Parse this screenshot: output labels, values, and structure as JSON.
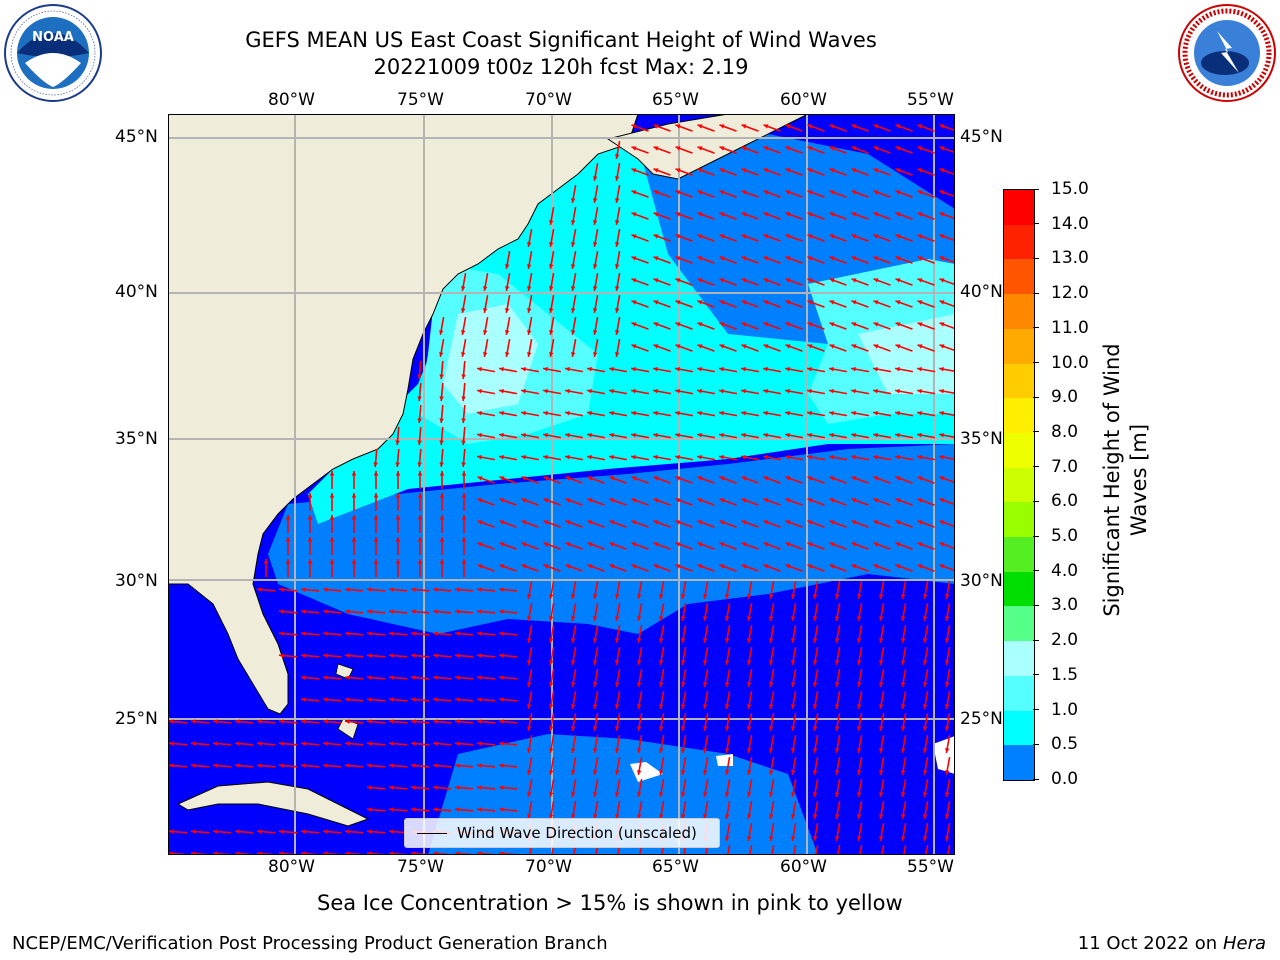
{
  "title": {
    "line1": "GEFS MEAN US East Coast Significant Height of Wind Waves",
    "line2": "20221009 t00z 120h fcst   Max: 2.19"
  },
  "logos": {
    "left": {
      "name": "NOAA",
      "ring_text": "NATIONAL OCEANIC AND ATMOSPHERIC ADMINISTRATION · U.S. DEPARTMENT OF COMMERCE"
    },
    "right": {
      "name": "NATIONAL WEATHER SERVICE"
    }
  },
  "map": {
    "lon_labels": [
      "80°W",
      "75°W",
      "70°W",
      "65°W",
      "60°W",
      "55°W"
    ],
    "lat_labels": [
      "45°N",
      "40°N",
      "35°N",
      "30°N",
      "25°N"
    ],
    "land_color": "#efedda",
    "arrow_color": "#ff0000",
    "grid": true
  },
  "legend": {
    "label": "Wind Wave Direction (unscaled)"
  },
  "colorbar": {
    "label": "Significant Height of Wind Waves [m]",
    "label_line1": "Significant Height of Wind",
    "label_line2": "Waves [m]",
    "ticks": [
      "15.0",
      "14.0",
      "13.0",
      "12.0",
      "11.0",
      "10.0",
      "9.0",
      "8.0",
      "7.0",
      "6.0",
      "5.0",
      "4.0",
      "3.0",
      "2.0",
      "1.5",
      "1.0",
      "0.5",
      "0.0"
    ],
    "colors": [
      "#ff0000",
      "#ff2200",
      "#ff5500",
      "#ff8800",
      "#ffaa00",
      "#ffcc00",
      "#ffee00",
      "#eeff00",
      "#ccff00",
      "#99ff00",
      "#55ee22",
      "#00dd00",
      "#55ff88",
      "#aaffff",
      "#55ffff",
      "#00ffff",
      "#0080ff",
      "#0000ff"
    ]
  },
  "footer": {
    "note": "Sea Ice Concentration > 15% is shown in pink to yellow",
    "org": "NCEP/EMC/Verification Post Processing Product Generation Branch",
    "date": "11 Oct 2022 on",
    "host": "Hera"
  }
}
